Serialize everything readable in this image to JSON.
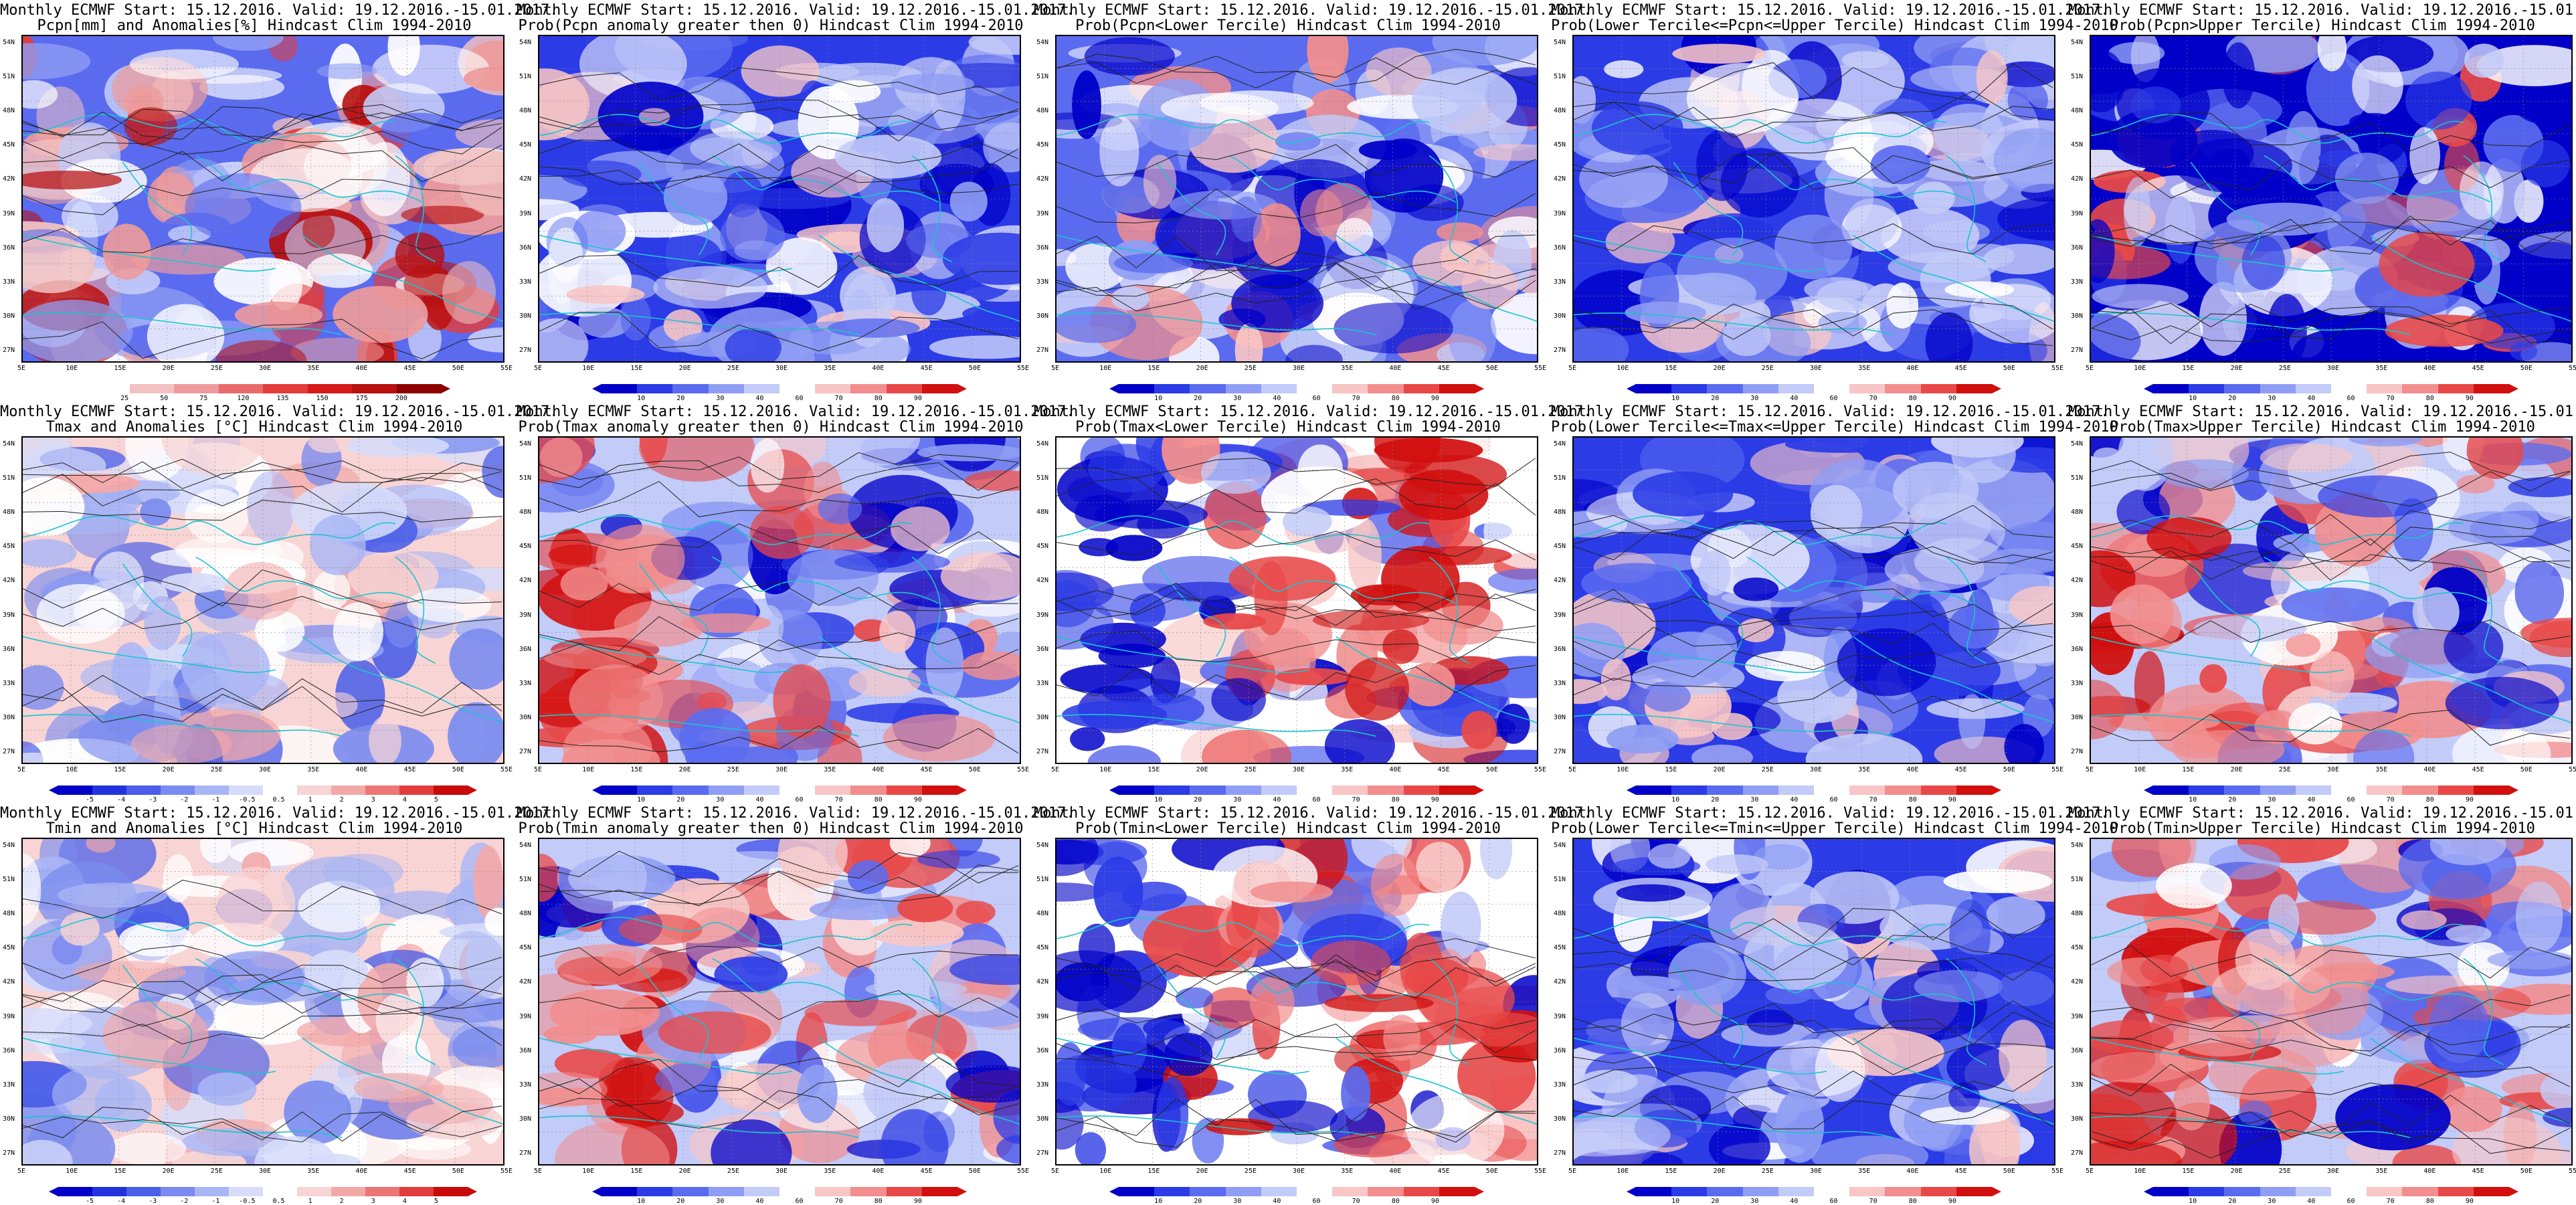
{
  "title_prefix": "Monthly ECMWF Start: 15.12.2016. Valid: 19.12.2016.-15.01.2017.",
  "lat_labels": [
    "54N",
    "51N",
    "48N",
    "45N",
    "42N",
    "39N",
    "36N",
    "33N",
    "30N",
    "27N"
  ],
  "lon_labels": [
    "5E",
    "10E",
    "15E",
    "20E",
    "25E",
    "30E",
    "35E",
    "40E",
    "45E",
    "50E",
    "55E"
  ],
  "colorbars": {
    "pcpn_anom": {
      "labels": [
        "25",
        "50",
        "75",
        "120",
        "135",
        "150",
        "175",
        "200"
      ],
      "colors": [
        "#ffffff",
        "#f2c2c2",
        "#ee9b9b",
        "#e86a6a",
        "#e23c3c",
        "#d51919",
        "#b80f0f",
        "#8c0000"
      ]
    },
    "prob": {
      "labels": [
        "10",
        "20",
        "30",
        "40",
        "60",
        "70",
        "80",
        "90"
      ],
      "colors": [
        "#0000c8",
        "#2b3be6",
        "#5a6bf0",
        "#8f9ef4",
        "#c3cbf8",
        "#ffffff",
        "#f8c6c6",
        "#f28e8e",
        "#e84848",
        "#d10f0f"
      ]
    },
    "temp_anom": {
      "labels": [
        "-5",
        "-4",
        "-3",
        "-2",
        "-1",
        "-0.5",
        "0.5",
        "1",
        "2",
        "3",
        "4",
        "5"
      ],
      "colors": [
        "#0000c8",
        "#2233dd",
        "#4a5ee8",
        "#7a8cf0",
        "#a9b6f5",
        "#d6dcfa",
        "#ffffff",
        "#f8d4d4",
        "#f3a8a8",
        "#ec7676",
        "#e23c3c",
        "#c80a0a"
      ]
    }
  },
  "panels": [
    {
      "id": "p1",
      "subtitle": "Pcpn[mm] and Anomalies[%] Hindcast Clim 1994-2010",
      "colorbar": "pcpn_anom",
      "bias": "pcpn"
    },
    {
      "id": "p2",
      "subtitle": "Prob(Pcpn anomaly greater then 0) Hindcast Clim 1994-2010",
      "colorbar": "prob",
      "bias": "blue"
    },
    {
      "id": "p3",
      "subtitle": "Prob(Pcpn<Lower Tercile) Hindcast Clim 1994-2010",
      "colorbar": "prob",
      "bias": "mixed"
    },
    {
      "id": "p4",
      "subtitle": "Prob(Lower Tercile<=Pcpn<=Upper Tercile) Hindcast Clim 1994-2010",
      "colorbar": "prob",
      "bias": "blue"
    },
    {
      "id": "p5",
      "subtitle": "Prob(Pcpn>Upper Tercile) Hindcast Clim 1994-2010",
      "colorbar": "prob",
      "bias": "deepblue"
    },
    {
      "id": "p6",
      "subtitle": "Tmax and Anomalies [°C] Hindcast Clim 1994-2010",
      "colorbar": "temp_anom",
      "bias": "tanom"
    },
    {
      "id": "p7",
      "subtitle": "Prob(Tmax anomaly greater then 0) Hindcast Clim 1994-2010",
      "colorbar": "prob",
      "bias": "westred"
    },
    {
      "id": "p8",
      "subtitle": "Prob(Tmax<Lower Tercile) Hindcast Clim 1994-2010",
      "colorbar": "prob",
      "bias": "eastred"
    },
    {
      "id": "p9",
      "subtitle": "Prob(Lower Tercile<=Tmax<=Upper Tercile) Hindcast Clim 1994-2010",
      "colorbar": "prob",
      "bias": "blue"
    },
    {
      "id": "p10",
      "subtitle": "Prob(Tmax>Upper Tercile) Hindcast Clim 1994-2010",
      "colorbar": "prob",
      "bias": "westred"
    },
    {
      "id": "p11",
      "subtitle": "Tmin and Anomalies [°C] Hindcast Clim 1994-2010",
      "colorbar": "temp_anom",
      "bias": "tanom"
    },
    {
      "id": "p12",
      "subtitle": "Prob(Tmin anomaly greater then 0) Hindcast Clim 1994-2010",
      "colorbar": "prob",
      "bias": "westred"
    },
    {
      "id": "p13",
      "subtitle": "Prob(Tmin<Lower Tercile) Hindcast Clim 1994-2010",
      "colorbar": "prob",
      "bias": "eastred"
    },
    {
      "id": "p14",
      "subtitle": "Prob(Lower Tercile<=Tmin<=Upper Tercile) Hindcast Clim 1994-2010",
      "colorbar": "prob",
      "bias": "blue"
    },
    {
      "id": "p15",
      "subtitle": "Prob(Tmin>Upper Tercile) Hindcast Clim 1994-2010",
      "colorbar": "prob",
      "bias": "westred"
    }
  ]
}
